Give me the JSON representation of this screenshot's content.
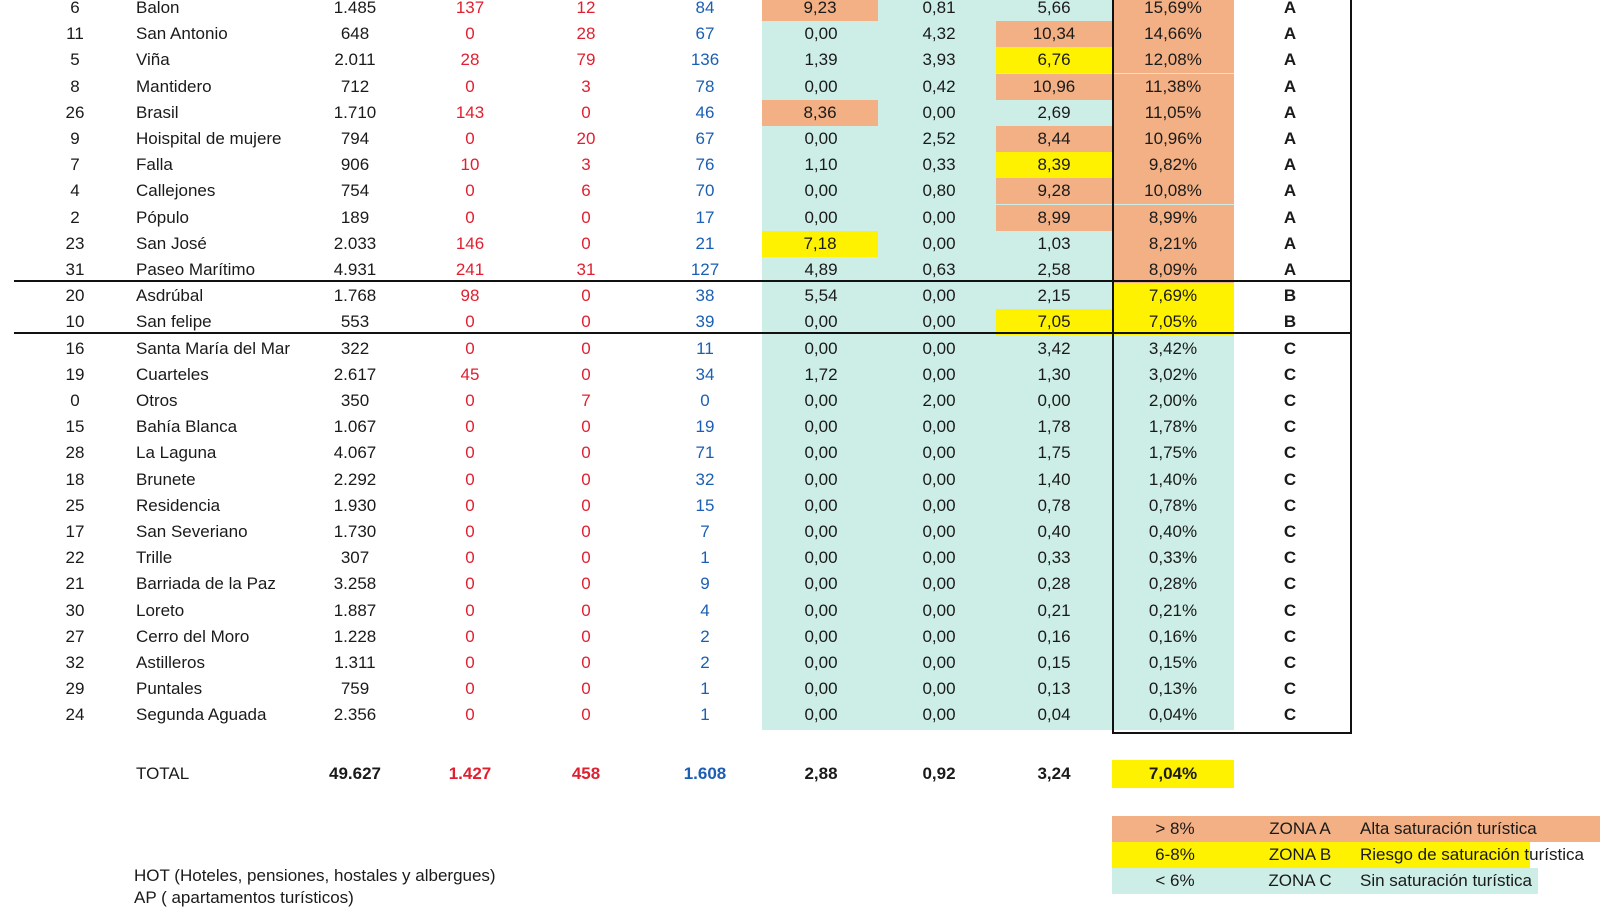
{
  "rows": [
    {
      "id": "6",
      "name": "Balon",
      "pop": "1.485",
      "hot": "137",
      "at": "12",
      "ap": "84",
      "v1": "9,23",
      "v2": "0,81",
      "v3": "5,66",
      "pct": "15,69%",
      "zone": "A",
      "v1_hl": "orange",
      "v3_hl": "",
      "pct_hl": "orange"
    },
    {
      "id": "11",
      "name": "San Antonio",
      "pop": "648",
      "hot": "0",
      "at": "28",
      "ap": "67",
      "v1": "0,00",
      "v2": "4,32",
      "v3": "10,34",
      "pct": "14,66%",
      "zone": "A",
      "v1_hl": "",
      "v3_hl": "orange",
      "pct_hl": "orange"
    },
    {
      "id": "5",
      "name": "Viña",
      "pop": "2.011",
      "hot": "28",
      "at": "79",
      "ap": "136",
      "v1": "1,39",
      "v2": "3,93",
      "v3": "6,76",
      "pct": "12,08%",
      "zone": "A",
      "v1_hl": "",
      "v3_hl": "yellow",
      "pct_hl": "orange"
    },
    {
      "id": "8",
      "name": "Mantidero",
      "pop": "712",
      "hot": "0",
      "at": "3",
      "ap": "78",
      "v1": "0,00",
      "v2": "0,42",
      "v3": "10,96",
      "pct": "11,38%",
      "zone": "A",
      "v1_hl": "",
      "v3_hl": "orange",
      "pct_hl": "orange"
    },
    {
      "id": "26",
      "name": "Brasil",
      "pop": "1.710",
      "hot": "143",
      "at": "0",
      "ap": "46",
      "v1": "8,36",
      "v2": "0,00",
      "v3": "2,69",
      "pct": "11,05%",
      "zone": "A",
      "v1_hl": "orange",
      "v3_hl": "",
      "pct_hl": "orange"
    },
    {
      "id": "9",
      "name": "Hoispital de mujere",
      "pop": "794",
      "hot": "0",
      "at": "20",
      "ap": "67",
      "v1": "0,00",
      "v2": "2,52",
      "v3": "8,44",
      "pct": "10,96%",
      "zone": "A",
      "v1_hl": "",
      "v3_hl": "orange",
      "pct_hl": "orange"
    },
    {
      "id": "7",
      "name": "Falla",
      "pop": "906",
      "hot": "10",
      "at": "3",
      "ap": "76",
      "v1": "1,10",
      "v2": "0,33",
      "v3": "8,39",
      "pct": "9,82%",
      "zone": "A",
      "v1_hl": "",
      "v3_hl": "yellow",
      "pct_hl": "orange"
    },
    {
      "id": "4",
      "name": "Callejones",
      "pop": "754",
      "hot": "0",
      "at": "6",
      "ap": "70",
      "v1": "0,00",
      "v2": "0,80",
      "v3": "9,28",
      "pct": "10,08%",
      "zone": "A",
      "v1_hl": "",
      "v3_hl": "orange",
      "pct_hl": "orange"
    },
    {
      "id": "2",
      "name": "Pópulo",
      "pop": "189",
      "hot": "0",
      "at": "0",
      "ap": "17",
      "v1": "0,00",
      "v2": "0,00",
      "v3": "8,99",
      "pct": "8,99%",
      "zone": "A",
      "v1_hl": "",
      "v3_hl": "orange",
      "pct_hl": "orange"
    },
    {
      "id": "23",
      "name": "San José",
      "pop": "2.033",
      "hot": "146",
      "at": "0",
      "ap": "21",
      "v1": "7,18",
      "v2": "0,00",
      "v3": "1,03",
      "pct": "8,21%",
      "zone": "A",
      "v1_hl": "yellow",
      "v3_hl": "",
      "pct_hl": "orange"
    },
    {
      "id": "31",
      "name": "Paseo Marítimo",
      "pop": "4.931",
      "hot": "241",
      "at": "31",
      "ap": "127",
      "v1": "4,89",
      "v2": "0,63",
      "v3": "2,58",
      "pct": "8,09%",
      "zone": "A",
      "v1_hl": "",
      "v3_hl": "",
      "pct_hl": "orange"
    },
    {
      "id": "20",
      "name": "Asdrúbal",
      "pop": "1.768",
      "hot": "98",
      "at": "0",
      "ap": "38",
      "v1": "5,54",
      "v2": "0,00",
      "v3": "2,15",
      "pct": "7,69%",
      "zone": "B",
      "v1_hl": "",
      "v3_hl": "",
      "pct_hl": "yellow"
    },
    {
      "id": "10",
      "name": "San felipe",
      "pop": "553",
      "hot": "0",
      "at": "0",
      "ap": "39",
      "v1": "0,00",
      "v2": "0,00",
      "v3": "7,05",
      "pct": "7,05%",
      "zone": "B",
      "v1_hl": "",
      "v3_hl": "yellow",
      "pct_hl": "yellow"
    },
    {
      "id": "16",
      "name": "Santa María del Mar",
      "pop": "322",
      "hot": "0",
      "at": "0",
      "ap": "11",
      "v1": "0,00",
      "v2": "0,00",
      "v3": "3,42",
      "pct": "3,42%",
      "zone": "C",
      "v1_hl": "",
      "v3_hl": "",
      "pct_hl": ""
    },
    {
      "id": "19",
      "name": "Cuarteles",
      "pop": "2.617",
      "hot": "45",
      "at": "0",
      "ap": "34",
      "v1": "1,72",
      "v2": "0,00",
      "v3": "1,30",
      "pct": "3,02%",
      "zone": "C",
      "v1_hl": "",
      "v3_hl": "",
      "pct_hl": ""
    },
    {
      "id": "0",
      "name": "Otros",
      "pop": "350",
      "hot": "0",
      "at": "7",
      "ap": "0",
      "v1": "0,00",
      "v2": "2,00",
      "v3": "0,00",
      "pct": "2,00%",
      "zone": "C",
      "v1_hl": "",
      "v3_hl": "",
      "pct_hl": ""
    },
    {
      "id": "15",
      "name": "Bahía Blanca",
      "pop": "1.067",
      "hot": "0",
      "at": "0",
      "ap": "19",
      "v1": "0,00",
      "v2": "0,00",
      "v3": "1,78",
      "pct": "1,78%",
      "zone": "C",
      "v1_hl": "",
      "v3_hl": "",
      "pct_hl": ""
    },
    {
      "id": "28",
      "name": "La Laguna",
      "pop": "4.067",
      "hot": "0",
      "at": "0",
      "ap": "71",
      "v1": "0,00",
      "v2": "0,00",
      "v3": "1,75",
      "pct": "1,75%",
      "zone": "C",
      "v1_hl": "",
      "v3_hl": "",
      "pct_hl": ""
    },
    {
      "id": "18",
      "name": "Brunete",
      "pop": "2.292",
      "hot": "0",
      "at": "0",
      "ap": "32",
      "v1": "0,00",
      "v2": "0,00",
      "v3": "1,40",
      "pct": "1,40%",
      "zone": "C",
      "v1_hl": "",
      "v3_hl": "",
      "pct_hl": ""
    },
    {
      "id": "25",
      "name": "Residencia",
      "pop": "1.930",
      "hot": "0",
      "at": "0",
      "ap": "15",
      "v1": "0,00",
      "v2": "0,00",
      "v3": "0,78",
      "pct": "0,78%",
      "zone": "C",
      "v1_hl": "",
      "v3_hl": "",
      "pct_hl": ""
    },
    {
      "id": "17",
      "name": "San Severiano",
      "pop": "1.730",
      "hot": "0",
      "at": "0",
      "ap": "7",
      "v1": "0,00",
      "v2": "0,00",
      "v3": "0,40",
      "pct": "0,40%",
      "zone": "C",
      "v1_hl": "",
      "v3_hl": "",
      "pct_hl": ""
    },
    {
      "id": "22",
      "name": "Trille",
      "pop": "307",
      "hot": "0",
      "at": "0",
      "ap": "1",
      "v1": "0,00",
      "v2": "0,00",
      "v3": "0,33",
      "pct": "0,33%",
      "zone": "C",
      "v1_hl": "",
      "v3_hl": "",
      "pct_hl": ""
    },
    {
      "id": "21",
      "name": "Barriada de la Paz",
      "pop": "3.258",
      "hot": "0",
      "at": "0",
      "ap": "9",
      "v1": "0,00",
      "v2": "0,00",
      "v3": "0,28",
      "pct": "0,28%",
      "zone": "C",
      "v1_hl": "",
      "v3_hl": "",
      "pct_hl": ""
    },
    {
      "id": "30",
      "name": "Loreto",
      "pop": "1.887",
      "hot": "0",
      "at": "0",
      "ap": "4",
      "v1": "0,00",
      "v2": "0,00",
      "v3": "0,21",
      "pct": "0,21%",
      "zone": "C",
      "v1_hl": "",
      "v3_hl": "",
      "pct_hl": ""
    },
    {
      "id": "27",
      "name": "Cerro del Moro",
      "pop": "1.228",
      "hot": "0",
      "at": "0",
      "ap": "2",
      "v1": "0,00",
      "v2": "0,00",
      "v3": "0,16",
      "pct": "0,16%",
      "zone": "C",
      "v1_hl": "",
      "v3_hl": "",
      "pct_hl": ""
    },
    {
      "id": "32",
      "name": "Astilleros",
      "pop": "1.311",
      "hot": "0",
      "at": "0",
      "ap": "2",
      "v1": "0,00",
      "v2": "0,00",
      "v3": "0,15",
      "pct": "0,15%",
      "zone": "C",
      "v1_hl": "",
      "v3_hl": "",
      "pct_hl": ""
    },
    {
      "id": "29",
      "name": "Puntales",
      "pop": "759",
      "hot": "0",
      "at": "0",
      "ap": "1",
      "v1": "0,00",
      "v2": "0,00",
      "v3": "0,13",
      "pct": "0,13%",
      "zone": "C",
      "v1_hl": "",
      "v3_hl": "",
      "pct_hl": ""
    },
    {
      "id": "24",
      "name": "Segunda Aguada",
      "pop": "2.356",
      "hot": "0",
      "at": "0",
      "ap": "1",
      "v1": "0,00",
      "v2": "0,00",
      "v3": "0,04",
      "pct": "0,04%",
      "zone": "C",
      "v1_hl": "",
      "v3_hl": "",
      "pct_hl": ""
    }
  ],
  "total": {
    "label": "TOTAL",
    "pop": "49.627",
    "hot": "1.427",
    "at": "458",
    "ap": "1.608",
    "v1": "2,88",
    "v2": "0,92",
    "v3": "3,24",
    "pct": "7,04%"
  },
  "legend": [
    {
      "range": "> 8%",
      "zone": "ZONA A",
      "desc": "Alta saturación turística",
      "color": "#f2b084"
    },
    {
      "range": "6-8%",
      "zone": "ZONA B",
      "desc": "Riesgo de saturación turística",
      "color": "#fff200"
    },
    {
      "range": "< 6%",
      "zone": "ZONA C",
      "desc": "Sin saturación turística",
      "color": "#cdeee6"
    }
  ],
  "notes": [
    "HOT (Hoteles, pensiones, hostales y albergues)",
    "AP ( apartamentos turísticos)"
  ],
  "colors": {
    "orange": "#f2b084",
    "yellow": "#fff200",
    "teal": "#cdeee6",
    "red": "#e02030",
    "blue": "#1a5fb4"
  }
}
